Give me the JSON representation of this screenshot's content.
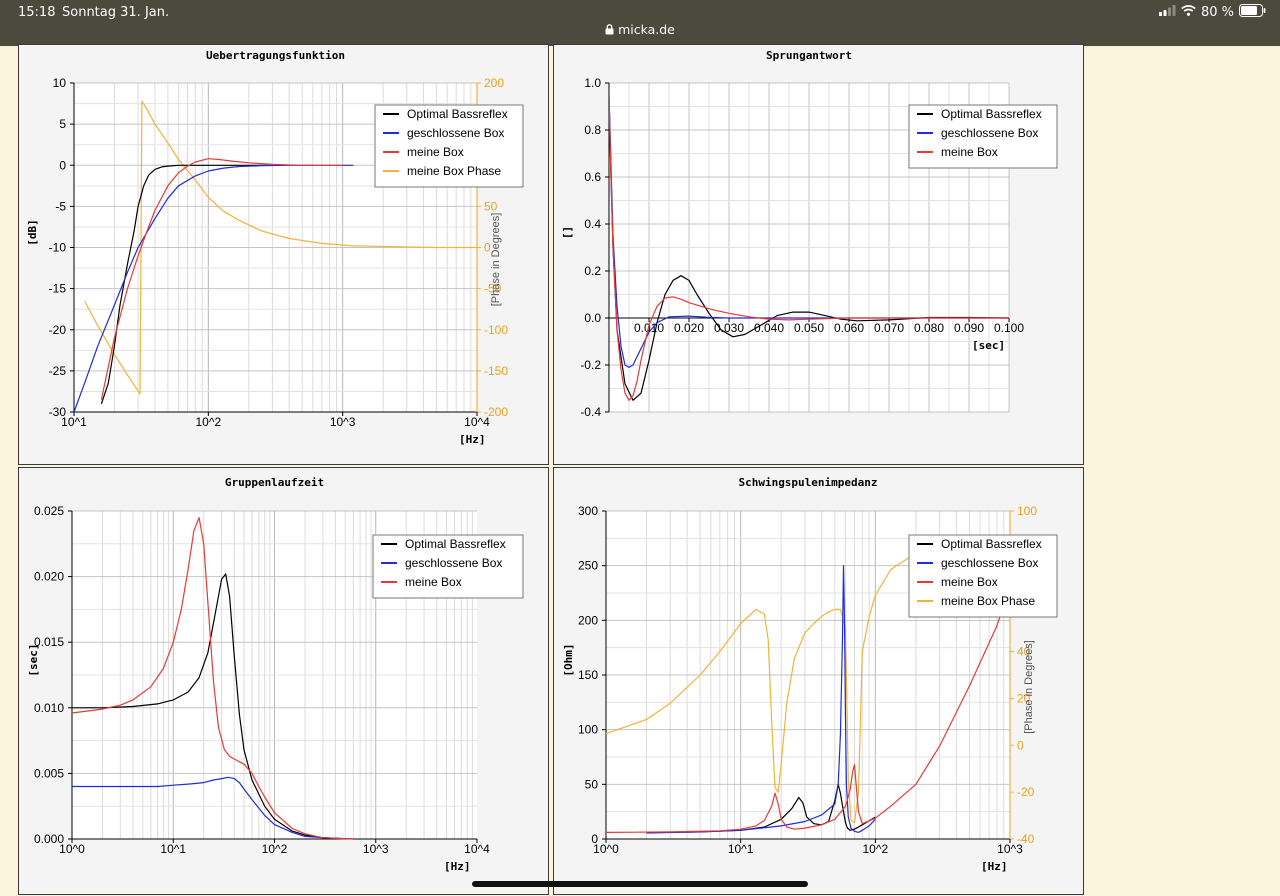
{
  "status_bar": {
    "time": "15:18",
    "date": "Sonntag 31. Jan.",
    "url": "micka.de",
    "battery": "80 %",
    "icons": [
      "signal-icon",
      "wifi-icon",
      "battery-icon",
      "lock-icon"
    ]
  },
  "colors": {
    "optimal": "#000000",
    "closed": "#1f2bd6",
    "mine": "#e53a36",
    "phase": "#f2b23a",
    "grid": "#cfcfcf",
    "bg": "#f4f4f4"
  },
  "legend_labels": {
    "optimal": "Optimal Bassreflex",
    "closed": "geschlossene Box",
    "mine": "meine Box",
    "phase": "meine Box Phase"
  },
  "chart_data": [
    {
      "type": "line",
      "title": "Uebertragungsfunktion",
      "xlabel": "[Hz]",
      "ylabel": "[dB]",
      "y2label": "[Phase in Degrees]",
      "xscale": "log",
      "xlim": [
        10,
        10000
      ],
      "ylim": [
        -30,
        10
      ],
      "y2lim": [
        -200,
        200
      ],
      "x_tick_labels": [
        "10^1",
        "10^2",
        "10^3",
        "10^4"
      ],
      "y_tick_labels": [
        "10",
        "5",
        "0",
        "-5",
        "-10",
        "-15",
        "-20",
        "-25",
        "-30"
      ],
      "y2_tick_labels": [
        "200",
        "150",
        "100",
        "50",
        "0",
        "-50",
        "-100",
        "-150",
        "-200"
      ],
      "legend": [
        "Optimal Bassreflex",
        "geschlossene Box",
        "meine Box",
        "meine Box Phase"
      ],
      "legend_position": "top-right",
      "grid": true,
      "series": [
        {
          "name": "Optimal Bassreflex",
          "axis": "left",
          "color": "#000000",
          "x": [
            16,
            18,
            20,
            22,
            25,
            28,
            30,
            33,
            36,
            40,
            45,
            50,
            60,
            80,
            100,
            150,
            200,
            300,
            350
          ],
          "y": [
            -29,
            -26.5,
            -22,
            -17,
            -12,
            -8,
            -5,
            -2.5,
            -1.2,
            -0.5,
            -0.2,
            -0.1,
            0,
            0,
            0,
            0,
            0,
            0,
            0
          ]
        },
        {
          "name": "geschlossene Box",
          "axis": "left",
          "color": "#1f2bd6",
          "x": [
            10,
            12,
            15,
            20,
            25,
            30,
            40,
            50,
            60,
            80,
            100,
            130,
            170,
            250,
            400,
            1200
          ],
          "y": [
            -30,
            -26.5,
            -22,
            -17,
            -13,
            -10,
            -6.5,
            -4,
            -2.5,
            -1.3,
            -0.7,
            -0.35,
            -0.15,
            -0.05,
            0,
            0
          ]
        },
        {
          "name": "meine Box",
          "axis": "left",
          "color": "#e53a36",
          "x": [
            16,
            18,
            20,
            25,
            30,
            35,
            40,
            50,
            60,
            70,
            80,
            100,
            120,
            150,
            200,
            300,
            500,
            1000
          ],
          "y": [
            -28.5,
            -24.5,
            -21,
            -15,
            -11,
            -8,
            -5.5,
            -2.5,
            -0.9,
            -0.1,
            0.4,
            0.8,
            0.7,
            0.5,
            0.3,
            0.1,
            0,
            0
          ]
        },
        {
          "name": "meine Box Phase",
          "axis": "right",
          "color": "#f2b23a",
          "x": [
            12,
            15,
            20,
            25,
            31,
            32,
            35,
            40,
            50,
            60,
            80,
            100,
            130,
            170,
            250,
            400,
            700,
            1200,
            2500,
            5000,
            10000
          ],
          "y": [
            -65,
            -95,
            -130,
            -155,
            -178,
            178,
            168,
            150,
            127,
            107,
            82,
            61,
            44,
            33,
            20,
            11,
            5,
            2,
            1,
            0,
            0
          ]
        }
      ]
    },
    {
      "type": "line",
      "title": "Sprungantwort",
      "xlabel": "[sec]",
      "ylabel": "[]",
      "xlim": [
        0,
        0.1
      ],
      "ylim": [
        -0.4,
        1.0
      ],
      "x_tick_labels": [
        "0.010",
        "0.020",
        "0.030",
        "0.040",
        "0.050",
        "0.060",
        "0.070",
        "0.080",
        "0.090",
        "0.100"
      ],
      "y_tick_labels": [
        "1.0",
        "0.8",
        "0.6",
        "0.4",
        "0.2",
        "0.0",
        "-0.2",
        "-0.4"
      ],
      "legend": [
        "Optimal Bassreflex",
        "geschlossene Box",
        "meine Box"
      ],
      "legend_position": "top-right",
      "grid": true,
      "series": [
        {
          "name": "Optimal Bassreflex",
          "color": "#000000",
          "x": [
            0,
            0.0005,
            0.001,
            0.002,
            0.004,
            0.006,
            0.008,
            0.01,
            0.012,
            0.014,
            0.016,
            0.018,
            0.02,
            0.022,
            0.025,
            0.028,
            0.031,
            0.034,
            0.038,
            0.042,
            0.046,
            0.05,
            0.054,
            0.058,
            0.062,
            0.07,
            0.08,
            0.09,
            0.1
          ],
          "y": [
            0.95,
            0.6,
            0.3,
            -0.05,
            -0.28,
            -0.35,
            -0.32,
            -0.18,
            -0.02,
            0.1,
            0.16,
            0.18,
            0.16,
            0.1,
            0.02,
            -0.05,
            -0.08,
            -0.07,
            -0.03,
            0.01,
            0.025,
            0.025,
            0.01,
            -0.005,
            -0.012,
            -0.008,
            0.002,
            0.002,
            0
          ]
        },
        {
          "name": "geschlossene Box",
          "color": "#1f2bd6",
          "x": [
            0,
            0.0005,
            0.001,
            0.002,
            0.003,
            0.004,
            0.005,
            0.006,
            0.008,
            0.01,
            0.012,
            0.015,
            0.02,
            0.025,
            0.03,
            0.1
          ],
          "y": [
            0.95,
            0.65,
            0.35,
            0.05,
            -0.12,
            -0.2,
            -0.21,
            -0.2,
            -0.13,
            -0.06,
            -0.02,
            0.005,
            0.008,
            0.003,
            0,
            0
          ]
        },
        {
          "name": "meine Box",
          "color": "#e53a36",
          "x": [
            0,
            0.0005,
            0.001,
            0.002,
            0.003,
            0.004,
            0.005,
            0.006,
            0.007,
            0.008,
            0.01,
            0.012,
            0.014,
            0.016,
            0.018,
            0.02,
            0.023,
            0.026,
            0.03,
            0.035,
            0.04,
            0.045,
            0.05,
            0.06,
            0.1
          ],
          "y": [
            0.95,
            0.6,
            0.3,
            -0.05,
            -0.22,
            -0.32,
            -0.35,
            -0.33,
            -0.27,
            -0.18,
            -0.03,
            0.05,
            0.085,
            0.09,
            0.08,
            0.065,
            0.05,
            0.035,
            0.02,
            0.005,
            -0.005,
            -0.008,
            -0.005,
            0,
            0
          ]
        }
      ]
    },
    {
      "type": "line",
      "title": "Gruppenlaufzeit",
      "xlabel": "[Hz]",
      "ylabel": "[sec]",
      "xscale": "log",
      "xlim": [
        1,
        10000
      ],
      "ylim": [
        0,
        0.025
      ],
      "x_tick_labels": [
        "10^0",
        "10^1",
        "10^2",
        "10^3",
        "10^4"
      ],
      "y_tick_labels": [
        "0.025",
        "0.020",
        "0.015",
        "0.010",
        "0.005",
        "0.000"
      ],
      "legend": [
        "Optimal Bassreflex",
        "geschlossene Box",
        "meine Box"
      ],
      "legend_position": "top-right",
      "grid": true,
      "series": [
        {
          "name": "Optimal Bassreflex",
          "color": "#000000",
          "x": [
            1,
            2,
            4,
            7,
            10,
            14,
            18,
            22,
            26,
            30,
            33,
            36,
            40,
            45,
            50,
            60,
            80,
            100,
            150,
            200,
            300,
            600
          ],
          "y": [
            0.01,
            0.01,
            0.0101,
            0.0103,
            0.0106,
            0.0112,
            0.0123,
            0.0142,
            0.0172,
            0.0198,
            0.0202,
            0.0185,
            0.014,
            0.0095,
            0.0068,
            0.0045,
            0.0025,
            0.0015,
            0.0006,
            0.0003,
            0.0001,
            0
          ]
        },
        {
          "name": "geschlossene Box",
          "color": "#1f2bd6",
          "x": [
            1,
            2,
            4,
            7,
            10,
            15,
            20,
            25,
            30,
            35,
            40,
            45,
            50,
            60,
            80,
            100,
            150,
            200,
            300,
            500
          ],
          "y": [
            0.004,
            0.004,
            0.004,
            0.004,
            0.0041,
            0.0042,
            0.0043,
            0.0045,
            0.0046,
            0.0047,
            0.0046,
            0.0043,
            0.0038,
            0.003,
            0.0018,
            0.0011,
            0.0005,
            0.0002,
            0.0001,
            0
          ]
        },
        {
          "name": "meine Box",
          "color": "#e53a36",
          "x": [
            1,
            2,
            3,
            4,
            6,
            8,
            10,
            12,
            14,
            16,
            18,
            20,
            22,
            25,
            28,
            32,
            36,
            40,
            50,
            60,
            70,
            80,
            100,
            150,
            200,
            300,
            600
          ],
          "y": [
            0.0096,
            0.0099,
            0.0102,
            0.0106,
            0.0116,
            0.013,
            0.015,
            0.0175,
            0.0205,
            0.0235,
            0.0245,
            0.0225,
            0.018,
            0.012,
            0.0085,
            0.0068,
            0.0063,
            0.0061,
            0.0057,
            0.005,
            0.004,
            0.0032,
            0.002,
            0.0008,
            0.0004,
            0.0001,
            0
          ]
        }
      ]
    },
    {
      "type": "line",
      "title": "Schwingspulenimpedanz",
      "xlabel": "[Hz]",
      "ylabel": "[Ohm]",
      "y2label": "[Phase in Degrees]",
      "xscale": "log",
      "xlim": [
        1,
        1000
      ],
      "ylim": [
        0,
        300
      ],
      "y2lim": [
        -40,
        100
      ],
      "x_tick_labels": [
        "10^0",
        "10^1",
        "10^2",
        "10^3"
      ],
      "y_tick_labels": [
        "300",
        "250",
        "200",
        "150",
        "100",
        "50",
        "0"
      ],
      "y2_tick_labels": [
        "100",
        "40",
        "20",
        "0",
        "-20",
        "-40"
      ],
      "legend": [
        "Optimal Bassreflex",
        "geschlossene Box",
        "meine Box",
        "meine Box Phase"
      ],
      "legend_position": "top-right",
      "grid": true,
      "series": [
        {
          "name": "Optimal Bassreflex",
          "axis": "left",
          "color": "#000000",
          "x": [
            2,
            5,
            10,
            15,
            20,
            24,
            27,
            29,
            31,
            35,
            40,
            45,
            50,
            53,
            55,
            58,
            60,
            62,
            65,
            70,
            80,
            100
          ],
          "y": [
            6,
            6.5,
            8,
            11,
            18,
            28,
            38,
            33,
            20,
            14,
            13,
            16,
            35,
            50,
            42,
            25,
            15,
            10,
            8,
            9,
            13,
            20
          ]
        },
        {
          "name": "geschlossene Box",
          "axis": "left",
          "color": "#1f2bd6",
          "x": [
            2,
            5,
            10,
            20,
            30,
            40,
            50,
            53,
            55,
            57,
            58,
            59,
            60,
            61,
            63,
            66,
            70,
            75,
            80,
            90,
            100
          ],
          "y": [
            5.5,
            6.5,
            8,
            12,
            16,
            22,
            32,
            50,
            95,
            185,
            250,
            200,
            110,
            50,
            20,
            10,
            7,
            6,
            8,
            12,
            18
          ]
        },
        {
          "name": "meine Box",
          "axis": "left",
          "color": "#e53a36",
          "x": [
            1,
            3,
            7,
            10,
            13,
            15,
            17,
            18,
            19,
            20,
            22,
            25,
            30,
            40,
            50,
            60,
            65,
            68,
            70,
            72,
            75,
            80,
            100,
            130,
            200,
            300,
            500,
            800,
            1000
          ],
          "y": [
            6,
            6.5,
            7.5,
            9,
            12,
            17,
            30,
            42,
            32,
            18,
            11,
            9,
            10,
            13,
            18,
            30,
            45,
            62,
            68,
            50,
            25,
            14,
            19,
            30,
            50,
            85,
            140,
            195,
            230
          ]
        },
        {
          "name": "meine Box Phase",
          "axis": "right",
          "color": "#f2b23a",
          "x": [
            1,
            2,
            3,
            5,
            7,
            10,
            13,
            15,
            16,
            17,
            18,
            19,
            20,
            22,
            25,
            30,
            35,
            40,
            45,
            50,
            55,
            60,
            63,
            66,
            70,
            75,
            80,
            90,
            100,
            130,
            200,
            350
          ],
          "y": [
            5,
            11,
            18,
            30,
            40,
            52,
            58,
            56,
            45,
            10,
            -18,
            -20,
            -8,
            18,
            37,
            48,
            52,
            55,
            57,
            58,
            58,
            50,
            -15,
            -32,
            -33,
            -20,
            40,
            55,
            64,
            75,
            82,
            85
          ]
        }
      ]
    }
  ]
}
